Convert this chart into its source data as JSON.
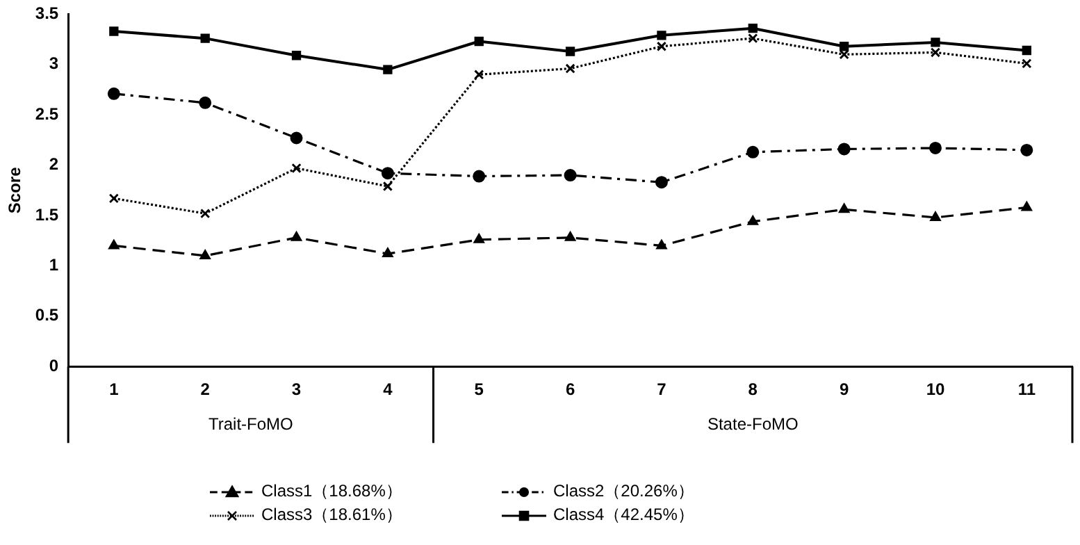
{
  "chart_data": {
    "type": "line",
    "ylabel": "Score",
    "categories": [
      "1",
      "2",
      "3",
      "4",
      "5",
      "6",
      "7",
      "8",
      "9",
      "10",
      "11"
    ],
    "ylim": [
      0,
      3.5
    ],
    "yticks": [
      0,
      0.5,
      1,
      1.5,
      2,
      2.5,
      3,
      3.5
    ],
    "grid": false,
    "legend": "bottom",
    "annotations": [
      "Trait-FoMO",
      "State-FoMO"
    ],
    "series": [
      {
        "name": "Class1（18.68%）",
        "color": "#000000",
        "marker": "triangle",
        "line_style": "dashed",
        "values": [
          1.2,
          1.1,
          1.28,
          1.12,
          1.26,
          1.28,
          1.2,
          1.44,
          1.56,
          1.48,
          1.58
        ]
      },
      {
        "name": "Class2（20.26%）",
        "color": "#000000",
        "marker": "circle",
        "line_style": "dashed",
        "values": [
          2.71,
          2.62,
          2.27,
          1.92,
          1.89,
          1.9,
          1.83,
          2.13,
          2.16,
          2.17,
          2.15
        ]
      },
      {
        "name": "Class3（18.61%）",
        "color": "#000000",
        "marker": "cross",
        "line_style": "dotted",
        "values": [
          1.67,
          1.52,
          1.97,
          1.79,
          2.9,
          2.96,
          3.18,
          3.26,
          3.1,
          3.12,
          3.01
        ]
      },
      {
        "name": "Class4（42.45%）",
        "color": "#000000",
        "marker": "square",
        "line_style": "solid",
        "values": [
          3.33,
          3.26,
          3.09,
          2.95,
          3.23,
          3.13,
          3.29,
          3.36,
          3.18,
          3.22,
          3.14
        ]
      }
    ]
  }
}
